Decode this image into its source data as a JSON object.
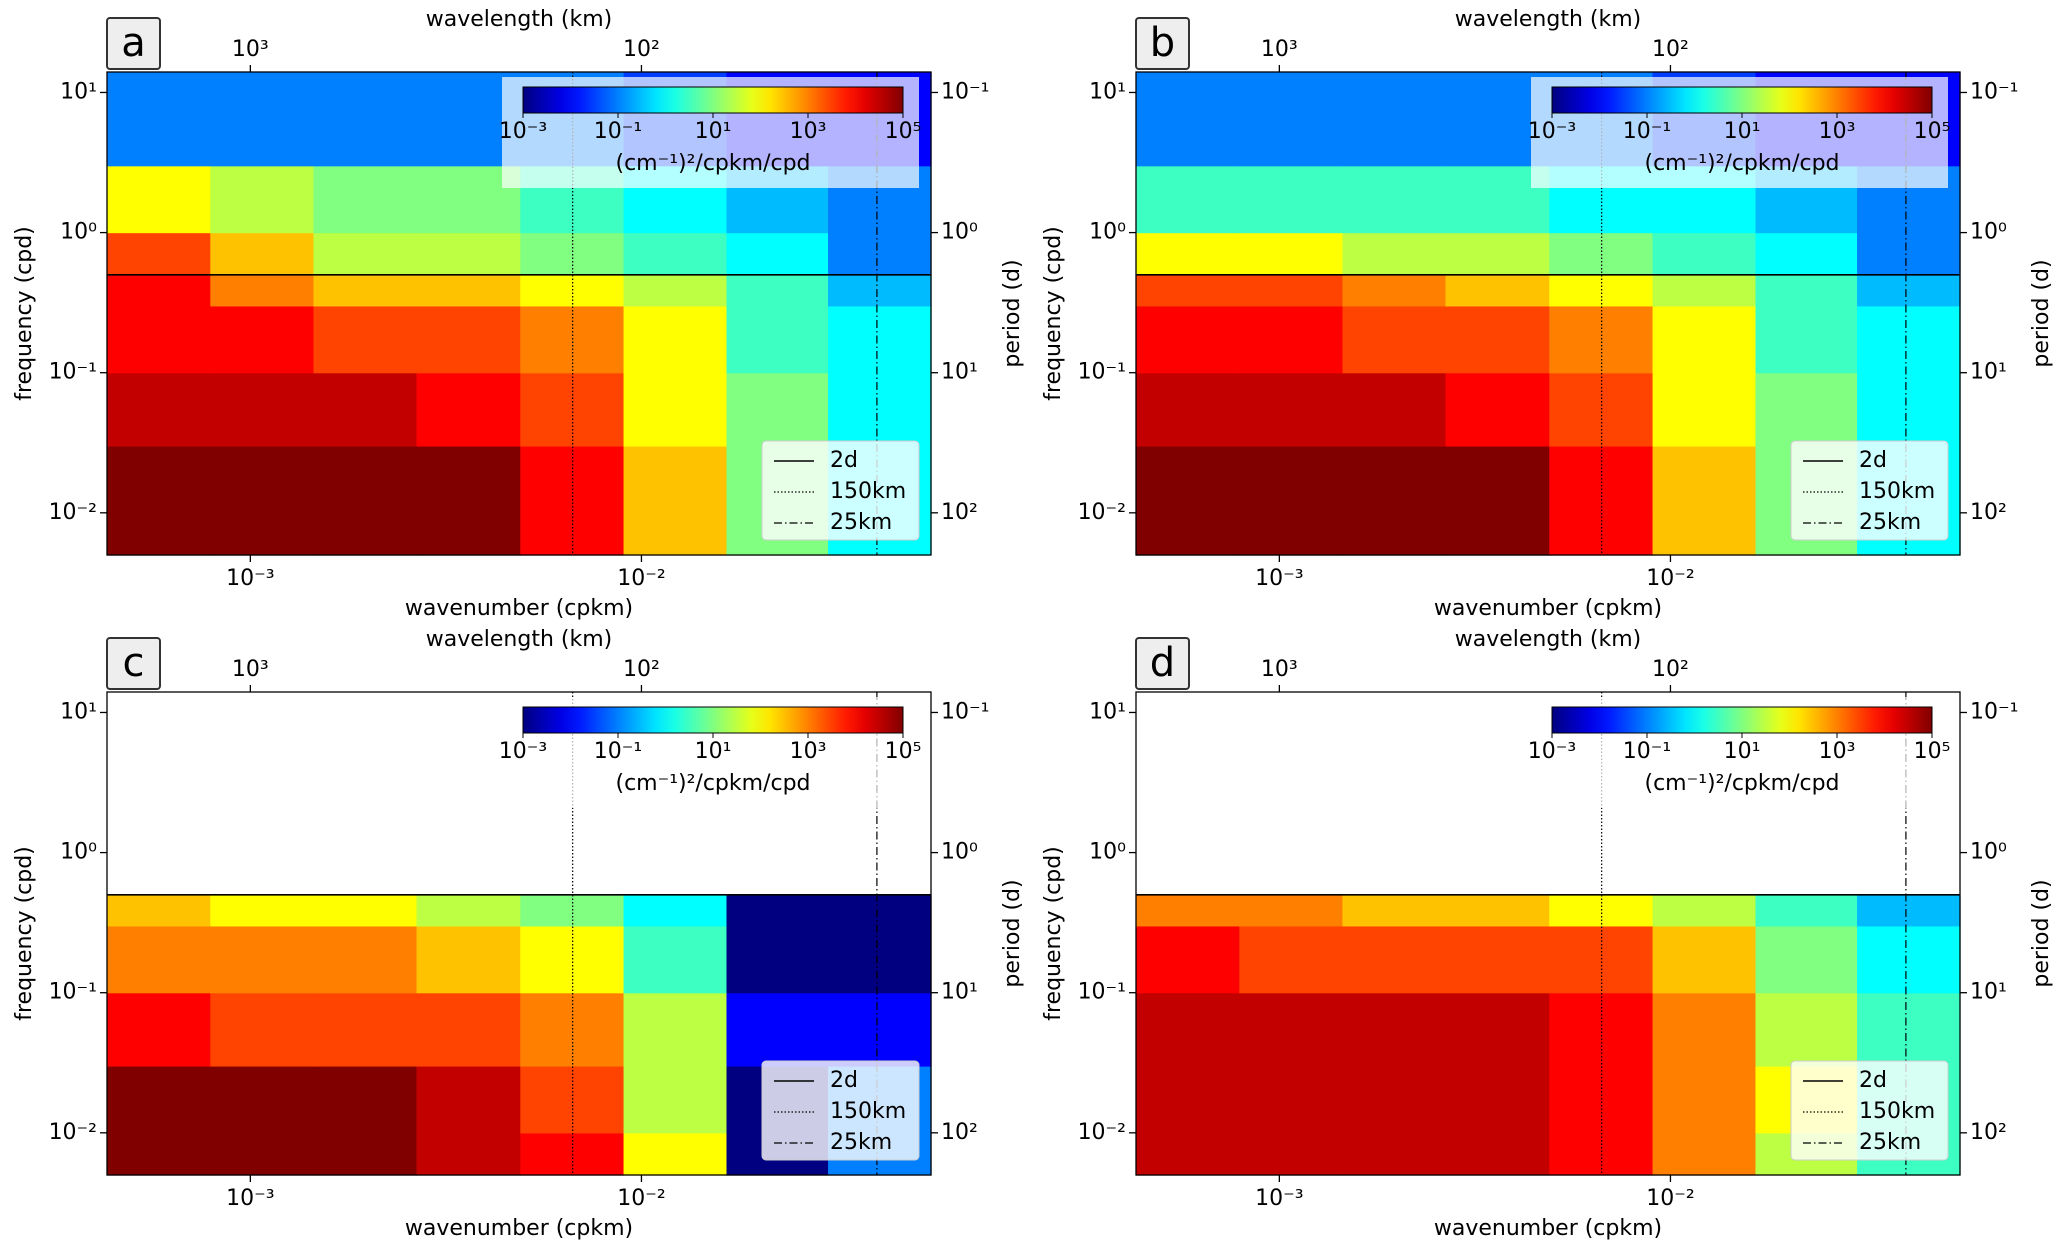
{
  "chart_data": [
    {
      "type": "heatmap",
      "panel": "a",
      "xlabel": "wavenumber (cpkm)",
      "x2label": "wavelength (km)",
      "ylabel": "frequency (cpd)",
      "y2label": "period (d)",
      "xscale": "log",
      "yscale": "log",
      "xlim": [
        0.00043,
        0.055
      ],
      "ylim": [
        0.005,
        14
      ],
      "xticks": [
        {
          "value": 0.001,
          "label": "10⁻³"
        },
        {
          "value": 0.01,
          "label": "10⁻²"
        }
      ],
      "x2ticks": [
        {
          "value": 1000,
          "label": "10³"
        },
        {
          "value": 100,
          "label": "10²"
        }
      ],
      "yticks": [
        {
          "value": 0.01,
          "label": "10⁻²"
        },
        {
          "value": 0.1,
          "label": "10⁻¹"
        },
        {
          "value": 1,
          "label": "10⁰"
        },
        {
          "value": 10,
          "label": "10¹"
        }
      ],
      "y2ticks": [
        {
          "value": 100,
          "label": "10²"
        },
        {
          "value": 10,
          "label": "10¹"
        },
        {
          "value": 1,
          "label": "10⁰"
        },
        {
          "value": 0.1,
          "label": "10⁻¹"
        }
      ],
      "x_edges": [
        0.00043,
        0.00079,
        0.00145,
        0.00266,
        0.0049,
        0.009,
        0.0165,
        0.03,
        0.055
      ],
      "y_edges": [
        0.005,
        0.01,
        0.03,
        0.1,
        0.3,
        0.5,
        1,
        3,
        14
      ],
      "z": [
        [
          100000.0,
          100000.0,
          100000.0,
          100000.0,
          10000.0,
          300,
          10,
          1
        ],
        [
          100000.0,
          100000.0,
          100000.0,
          100000.0,
          10000.0,
          300,
          10,
          1
        ],
        [
          30000.0,
          30000.0,
          30000.0,
          10000.0,
          3000,
          100,
          10,
          1
        ],
        [
          10000.0,
          10000.0,
          3000,
          3000,
          1000,
          100,
          3,
          1
        ],
        [
          10000.0,
          1000,
          300,
          300,
          100,
          30,
          3,
          0.3
        ],
        [
          3000,
          300,
          30,
          30,
          10,
          3,
          1,
          0.1
        ],
        [
          100,
          30,
          10,
          10,
          3,
          1,
          0.3,
          0.1
        ],
        [
          0.1,
          0.1,
          0.1,
          0.1,
          0.1,
          0.03,
          0.01,
          0.01
        ]
      ],
      "colorbar": {
        "label": "(cm⁻¹)²/cpkm/cpd",
        "scale": "log",
        "colormap": "jet",
        "lim": [
          0.001,
          100000
        ],
        "ticks": [
          {
            "value": 0.001,
            "label": "10⁻³"
          },
          {
            "value": 0.1,
            "label": "10⁻¹"
          },
          {
            "value": 10,
            "label": "10¹"
          },
          {
            "value": 1000,
            "label": "10³"
          },
          {
            "value": 100000,
            "label": "10⁵"
          }
        ]
      },
      "ref_lines": [
        {
          "name": "2d",
          "axis": "y",
          "value": 0.5,
          "style": "solid"
        },
        {
          "name": "150km",
          "axis": "x",
          "value": 0.00667,
          "style": "dotted"
        },
        {
          "name": "25km",
          "axis": "x",
          "value": 0.04,
          "style": "dashdot"
        }
      ],
      "legend": "lower right"
    },
    {
      "type": "heatmap",
      "panel": "b",
      "xlabel": "wavenumber (cpkm)",
      "x2label": "wavelength (km)",
      "ylabel": "frequency (cpd)",
      "y2label": "period (d)",
      "xscale": "log",
      "yscale": "log",
      "xlim": [
        0.00043,
        0.055
      ],
      "ylim": [
        0.005,
        14
      ],
      "xticks": [
        {
          "value": 0.001,
          "label": "10⁻³"
        },
        {
          "value": 0.01,
          "label": "10⁻²"
        }
      ],
      "x2ticks": [
        {
          "value": 1000,
          "label": "10³"
        },
        {
          "value": 100,
          "label": "10²"
        }
      ],
      "yticks": [
        {
          "value": 0.01,
          "label": "10⁻²"
        },
        {
          "value": 0.1,
          "label": "10⁻¹"
        },
        {
          "value": 1,
          "label": "10⁰"
        },
        {
          "value": 10,
          "label": "10¹"
        }
      ],
      "y2ticks": [
        {
          "value": 100,
          "label": "10²"
        },
        {
          "value": 10,
          "label": "10¹"
        },
        {
          "value": 1,
          "label": "10⁰"
        },
        {
          "value": 0.1,
          "label": "10⁻¹"
        }
      ],
      "x_edges": [
        0.00043,
        0.00079,
        0.00145,
        0.00266,
        0.0049,
        0.009,
        0.0165,
        0.03,
        0.055
      ],
      "y_edges": [
        0.005,
        0.01,
        0.03,
        0.1,
        0.3,
        0.5,
        1,
        3,
        14
      ],
      "z": [
        [
          100000.0,
          100000.0,
          100000.0,
          100000.0,
          10000.0,
          300,
          10,
          1
        ],
        [
          100000.0,
          100000.0,
          100000.0,
          100000.0,
          10000.0,
          300,
          10,
          1
        ],
        [
          30000.0,
          30000.0,
          30000.0,
          10000.0,
          3000,
          100,
          10,
          1
        ],
        [
          10000.0,
          10000.0,
          3000,
          3000,
          1000,
          100,
          3,
          1
        ],
        [
          3000,
          3000,
          1000,
          300,
          100,
          30,
          3,
          0.3
        ],
        [
          100,
          100,
          30,
          30,
          10,
          3,
          1,
          0.1
        ],
        [
          3,
          3,
          3,
          3,
          1,
          1,
          0.3,
          0.1
        ],
        [
          0.1,
          0.1,
          0.1,
          0.1,
          0.1,
          0.03,
          0.01,
          0.01
        ]
      ],
      "colorbar": {
        "label": "(cm⁻¹)²/cpkm/cpd",
        "scale": "log",
        "colormap": "jet",
        "lim": [
          0.001,
          100000
        ],
        "ticks": [
          {
            "value": 0.001,
            "label": "10⁻³"
          },
          {
            "value": 0.1,
            "label": "10⁻¹"
          },
          {
            "value": 10,
            "label": "10¹"
          },
          {
            "value": 1000,
            "label": "10³"
          },
          {
            "value": 100000,
            "label": "10⁵"
          }
        ]
      },
      "ref_lines": [
        {
          "name": "2d",
          "axis": "y",
          "value": 0.5,
          "style": "solid"
        },
        {
          "name": "150km",
          "axis": "x",
          "value": 0.00667,
          "style": "dotted"
        },
        {
          "name": "25km",
          "axis": "x",
          "value": 0.04,
          "style": "dashdot"
        }
      ],
      "legend": "lower right"
    },
    {
      "type": "heatmap",
      "panel": "c",
      "xlabel": "wavenumber (cpkm)",
      "x2label": "wavelength (km)",
      "ylabel": "frequency (cpd)",
      "y2label": "period (d)",
      "xscale": "log",
      "yscale": "log",
      "xlim": [
        0.00043,
        0.055
      ],
      "ylim": [
        0.005,
        14
      ],
      "xticks": [
        {
          "value": 0.001,
          "label": "10⁻³"
        },
        {
          "value": 0.01,
          "label": "10⁻²"
        }
      ],
      "x2ticks": [
        {
          "value": 1000,
          "label": "10³"
        },
        {
          "value": 100,
          "label": "10²"
        }
      ],
      "yticks": [
        {
          "value": 0.01,
          "label": "10⁻²"
        },
        {
          "value": 0.1,
          "label": "10⁻¹"
        },
        {
          "value": 1,
          "label": "10⁰"
        },
        {
          "value": 10,
          "label": "10¹"
        }
      ],
      "y2ticks": [
        {
          "value": 100,
          "label": "10²"
        },
        {
          "value": 10,
          "label": "10¹"
        },
        {
          "value": 1,
          "label": "10⁰"
        },
        {
          "value": 0.1,
          "label": "10⁻¹"
        }
      ],
      "x_edges": [
        0.00043,
        0.00079,
        0.00145,
        0.00266,
        0.0049,
        0.009,
        0.0165,
        0.03,
        0.055
      ],
      "y_edges": [
        0.005,
        0.01,
        0.03,
        0.1,
        0.3,
        0.5,
        1,
        3,
        14
      ],
      "z": [
        [
          100000.0,
          100000.0,
          100000.0,
          30000.0,
          10000.0,
          100,
          0.001,
          0.1
        ],
        [
          100000.0,
          100000.0,
          100000.0,
          30000.0,
          3000,
          30,
          0.001,
          0.1
        ],
        [
          10000.0,
          3000,
          3000,
          3000,
          1000,
          30,
          0.01,
          0.01
        ],
        [
          1000,
          1000,
          1000,
          300,
          100,
          3,
          0.001,
          0.001
        ],
        [
          300,
          100,
          100,
          30,
          10,
          1,
          0.001,
          0.001
        ],
        [
          null,
          null,
          null,
          null,
          null,
          null,
          null,
          null
        ],
        [
          null,
          null,
          null,
          null,
          null,
          null,
          null,
          null
        ],
        [
          null,
          null,
          null,
          null,
          null,
          null,
          null,
          null
        ]
      ],
      "colorbar": {
        "label": "(cm⁻¹)²/cpkm/cpd",
        "scale": "log",
        "colormap": "jet",
        "lim": [
          0.001,
          100000
        ],
        "ticks": [
          {
            "value": 0.001,
            "label": "10⁻³"
          },
          {
            "value": 0.1,
            "label": "10⁻¹"
          },
          {
            "value": 10,
            "label": "10¹"
          },
          {
            "value": 1000,
            "label": "10³"
          },
          {
            "value": 100000,
            "label": "10⁵"
          }
        ]
      },
      "ref_lines": [
        {
          "name": "2d",
          "axis": "y",
          "value": 0.5,
          "style": "solid"
        },
        {
          "name": "150km",
          "axis": "x",
          "value": 0.00667,
          "style": "dotted"
        },
        {
          "name": "25km",
          "axis": "x",
          "value": 0.04,
          "style": "dashdot"
        }
      ],
      "legend": "lower right"
    },
    {
      "type": "heatmap",
      "panel": "d",
      "xlabel": "wavenumber (cpkm)",
      "x2label": "wavelength (km)",
      "ylabel": "frequency (cpd)",
      "y2label": "period (d)",
      "xscale": "log",
      "yscale": "log",
      "xlim": [
        0.00043,
        0.055
      ],
      "ylim": [
        0.005,
        14
      ],
      "xticks": [
        {
          "value": 0.001,
          "label": "10⁻³"
        },
        {
          "value": 0.01,
          "label": "10⁻²"
        }
      ],
      "x2ticks": [
        {
          "value": 1000,
          "label": "10³"
        },
        {
          "value": 100,
          "label": "10²"
        }
      ],
      "yticks": [
        {
          "value": 0.01,
          "label": "10⁻²"
        },
        {
          "value": 0.1,
          "label": "10⁻¹"
        },
        {
          "value": 1,
          "label": "10⁰"
        },
        {
          "value": 10,
          "label": "10¹"
        }
      ],
      "y2ticks": [
        {
          "value": 100,
          "label": "10²"
        },
        {
          "value": 10,
          "label": "10¹"
        },
        {
          "value": 1,
          "label": "10⁰"
        },
        {
          "value": 0.1,
          "label": "10⁻¹"
        }
      ],
      "x_edges": [
        0.00043,
        0.00079,
        0.00145,
        0.00266,
        0.0049,
        0.009,
        0.0165,
        0.03,
        0.055
      ],
      "y_edges": [
        0.005,
        0.01,
        0.03,
        0.1,
        0.3,
        0.5,
        1,
        3,
        14
      ],
      "z": [
        [
          30000.0,
          30000.0,
          30000.0,
          30000.0,
          10000.0,
          1000,
          30,
          3
        ],
        [
          30000.0,
          30000.0,
          30000.0,
          30000.0,
          10000.0,
          1000,
          100,
          3
        ],
        [
          30000.0,
          30000.0,
          30000.0,
          30000.0,
          10000.0,
          1000,
          30,
          3
        ],
        [
          10000.0,
          3000,
          3000,
          3000,
          3000,
          300,
          10,
          1
        ],
        [
          1000,
          1000,
          300,
          300,
          100,
          30,
          3,
          0.3
        ],
        [
          null,
          null,
          null,
          null,
          null,
          null,
          null,
          null
        ],
        [
          null,
          null,
          null,
          null,
          null,
          null,
          null,
          null
        ],
        [
          null,
          null,
          null,
          null,
          null,
          null,
          null,
          null
        ]
      ],
      "colorbar": {
        "label": "(cm⁻¹)²/cpkm/cpd",
        "scale": "log",
        "colormap": "jet",
        "lim": [
          0.001,
          100000
        ],
        "ticks": [
          {
            "value": 0.001,
            "label": "10⁻³"
          },
          {
            "value": 0.1,
            "label": "10⁻¹"
          },
          {
            "value": 10,
            "label": "10¹"
          },
          {
            "value": 1000,
            "label": "10³"
          },
          {
            "value": 100000,
            "label": "10⁵"
          }
        ]
      },
      "ref_lines": [
        {
          "name": "2d",
          "axis": "y",
          "value": 0.5,
          "style": "solid"
        },
        {
          "name": "150km",
          "axis": "x",
          "value": 0.00667,
          "style": "dotted"
        },
        {
          "name": "25km",
          "axis": "x",
          "value": 0.04,
          "style": "dashdot"
        }
      ],
      "legend": "lower right"
    }
  ]
}
